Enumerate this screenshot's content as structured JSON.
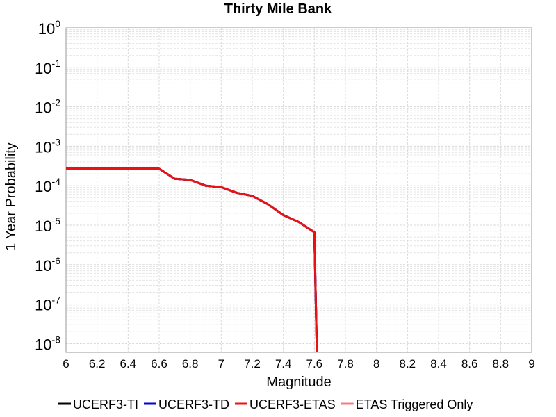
{
  "chart_data": {
    "type": "line",
    "title": "Thirty Mile Bank",
    "x_label": "Magnitude",
    "y_label": "1 Year Probability",
    "x": [
      6.0,
      6.1,
      6.2,
      6.3,
      6.4,
      6.5,
      6.6,
      6.7,
      6.8,
      6.9,
      7.0,
      7.1,
      7.2,
      7.3,
      7.4,
      7.5,
      7.6,
      7.62
    ],
    "series": [
      {
        "name": "UCERF3-TI",
        "color": "#000000",
        "values": [
          0.00027,
          0.00027,
          0.00027,
          0.00027,
          0.00027,
          0.00027,
          0.00027,
          0.00015,
          0.00014,
          0.0001,
          9.2e-05,
          6.6e-05,
          5.5e-05,
          3.4e-05,
          1.8e-05,
          1.2e-05,
          6.6e-06,
          1e-09
        ]
      },
      {
        "name": "UCERF3-TD",
        "color": "#0000dd",
        "values": [
          0.00027,
          0.00027,
          0.00027,
          0.00027,
          0.00027,
          0.00027,
          0.00027,
          0.00015,
          0.00014,
          0.0001,
          9.2e-05,
          6.6e-05,
          5.5e-05,
          3.4e-05,
          1.8e-05,
          1.2e-05,
          6.6e-06,
          1e-09
        ]
      },
      {
        "name": "ETAS Triggered Only",
        "color": "#f08080",
        "values": [
          null,
          null,
          null,
          null,
          null,
          null,
          null,
          null,
          null,
          null,
          null,
          null,
          null,
          null,
          null,
          null,
          null,
          null
        ]
      },
      {
        "name": "UCERF3-ETAS",
        "color": "#ee1111",
        "values": [
          0.00027,
          0.00027,
          0.00027,
          0.00027,
          0.00027,
          0.00027,
          0.00027,
          0.00015,
          0.00014,
          0.0001,
          9.2e-05,
          6.6e-05,
          5.5e-05,
          3.4e-05,
          1.8e-05,
          1.2e-05,
          6.6e-06,
          1e-09
        ]
      }
    ],
    "legend_order": [
      0,
      1,
      3,
      2
    ],
    "xlim": [
      6,
      9
    ],
    "xticks": [
      6,
      6.2,
      6.4,
      6.6,
      6.8,
      7,
      7.2,
      7.4,
      7.6,
      7.8,
      8,
      8.2,
      8.4,
      8.6,
      8.8,
      9
    ],
    "ylim": [
      6e-09,
      1
    ],
    "log_y": true,
    "grid": true,
    "legend": "bottom",
    "yticks": [
      {
        "value": 1,
        "label": "10",
        "sup": "0"
      },
      {
        "value": 0.1,
        "label": "10",
        "sup": "-1"
      },
      {
        "value": 0.01,
        "label": "10",
        "sup": "-2"
      },
      {
        "value": 0.001,
        "label": "10",
        "sup": "-3"
      },
      {
        "value": 0.0001,
        "label": "10",
        "sup": "-4"
      },
      {
        "value": 1e-05,
        "label": "10",
        "sup": "-5"
      },
      {
        "value": 1e-06,
        "label": "10",
        "sup": "-6"
      },
      {
        "value": 1e-07,
        "label": "10",
        "sup": "-7"
      },
      {
        "value": 1e-08,
        "label": "10",
        "sup": "-8"
      }
    ]
  }
}
